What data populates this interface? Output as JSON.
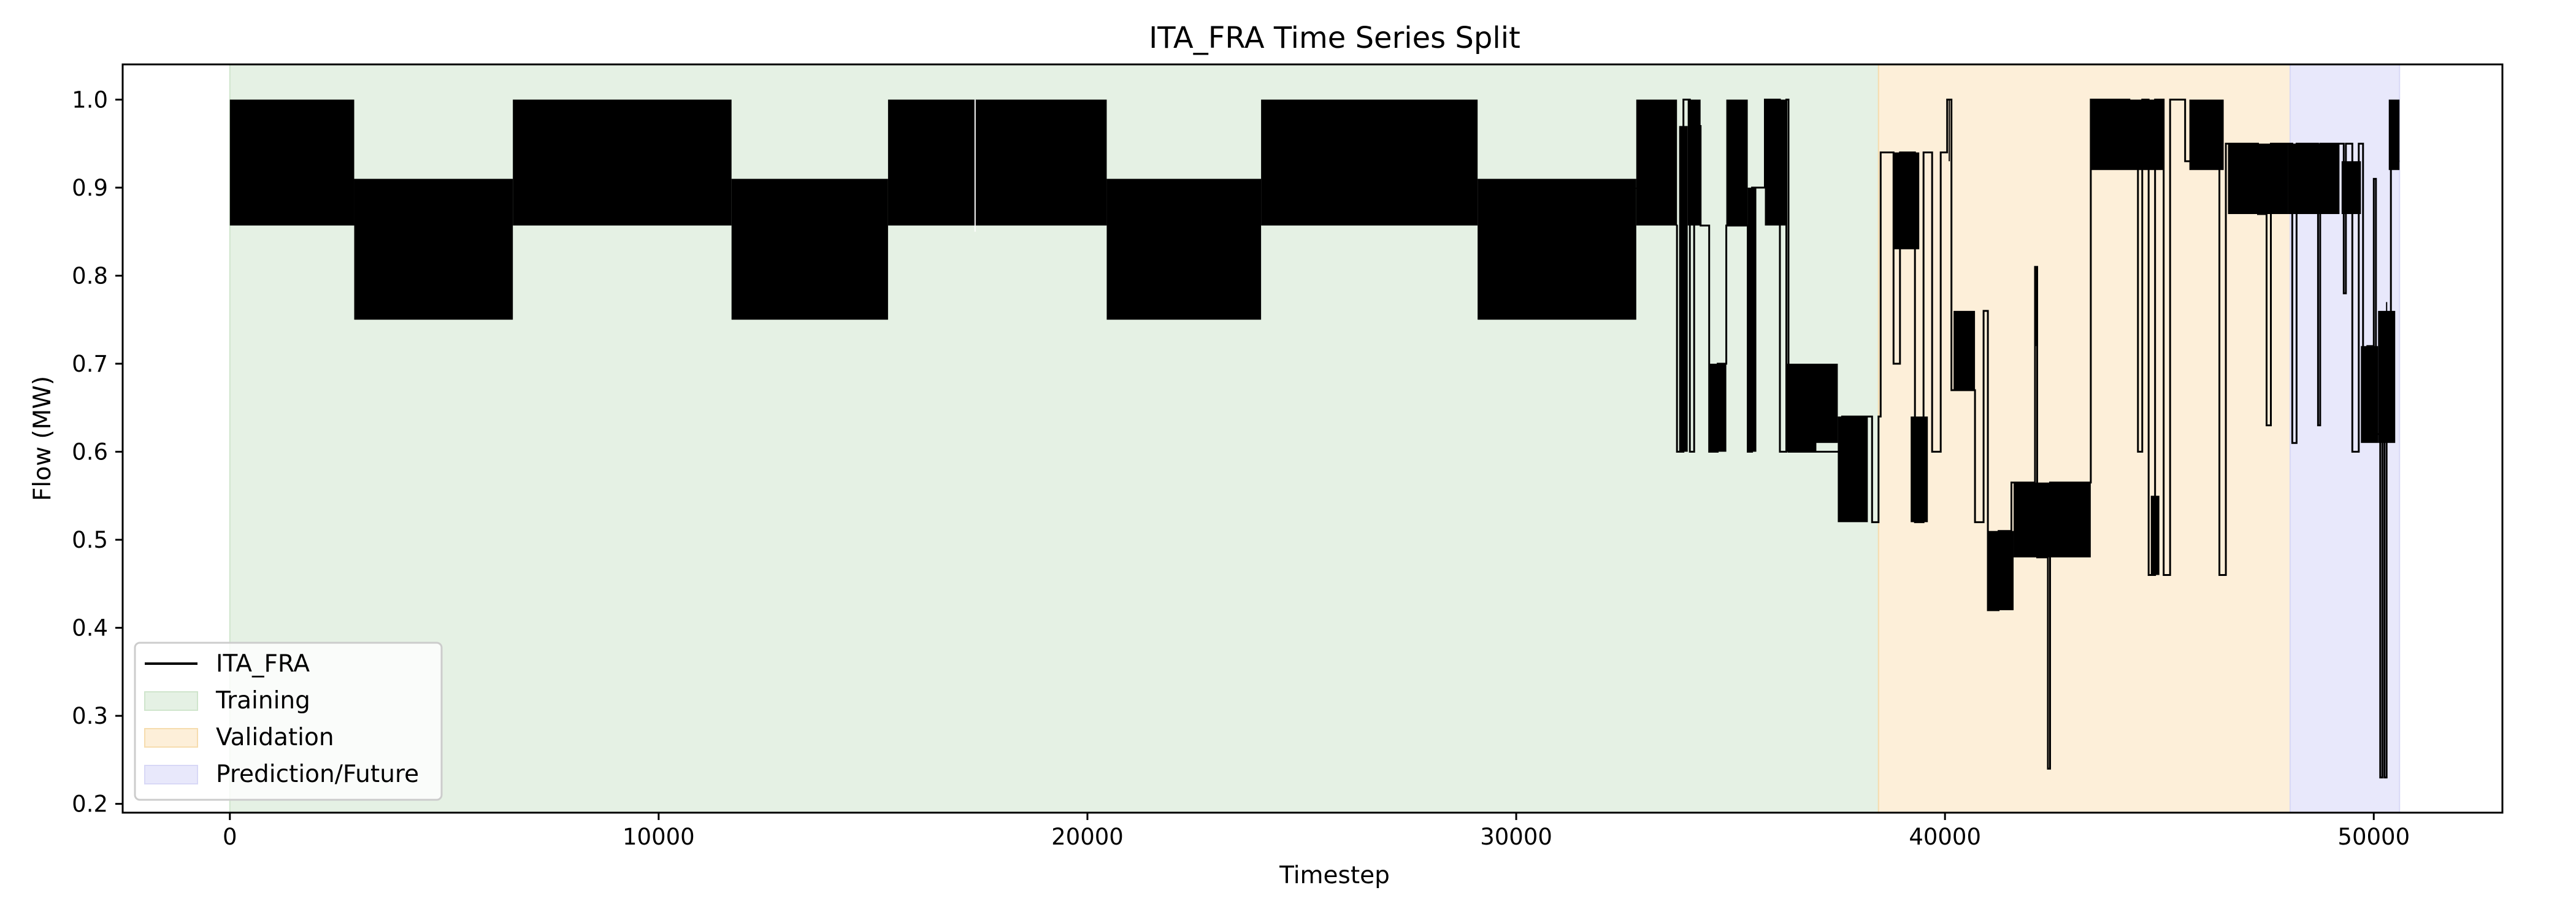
{
  "chart_data": {
    "type": "line",
    "title": "ITA_FRA Time Series Split",
    "xlabel": "Timestep",
    "ylabel": "Flow (MW)",
    "xlim": [
      -2500,
      53000
    ],
    "ylim": [
      0.19,
      1.04
    ],
    "xticks": [
      0,
      10000,
      20000,
      30000,
      40000,
      50000
    ],
    "xtick_labels": [
      "0",
      "10000",
      "20000",
      "30000",
      "40000",
      "50000"
    ],
    "yticks": [
      0.2,
      0.3,
      0.4,
      0.5,
      0.6,
      0.7,
      0.8,
      0.9,
      1.0
    ],
    "ytick_labels": [
      "0.2",
      "0.3",
      "0.4",
      "0.5",
      "0.6",
      "0.7",
      "0.8",
      "0.9",
      "1.0"
    ],
    "grid": false,
    "legend_position": "lower-left",
    "legend": [
      "ITA_FRA",
      "Training",
      "Validation",
      "Prediction/Future"
    ],
    "regions": [
      {
        "name": "Training",
        "x_start": 0,
        "x_end": 38450,
        "color": "#e5f1e4",
        "edge": "#cfe5cc"
      },
      {
        "name": "Validation",
        "x_start": 38450,
        "x_end": 48050,
        "color": "#fdefd9",
        "edge": "#f6dcae"
      },
      {
        "name": "Prediction/Future",
        "x_start": 48050,
        "x_end": 50600,
        "color": "#e8e8fb",
        "edge": "#d8d8f6"
      }
    ],
    "series": [
      {
        "name": "ITA_FRA",
        "color": "#000000",
        "bands": [
          [
            0,
            2900,
            0.857,
            1.0
          ],
          [
            2900,
            6600,
            0.75,
            0.91
          ],
          [
            6600,
            11700,
            0.857,
            1.0
          ],
          [
            11700,
            15350,
            0.75,
            0.91
          ],
          [
            15350,
            20450,
            0.857,
            1.0
          ],
          [
            20450,
            24050,
            0.75,
            0.91
          ],
          [
            24050,
            29100,
            0.857,
            1.0
          ],
          [
            29100,
            32800,
            0.75,
            0.91
          ],
          [
            32800,
            33750,
            0.857,
            1.0
          ],
          [
            33800,
            34000,
            0.6,
            0.97
          ],
          [
            34000,
            34300,
            0.857,
            1.0
          ],
          [
            34500,
            34900,
            0.6,
            0.7
          ],
          [
            34900,
            35400,
            0.857,
            1.0
          ],
          [
            35400,
            35600,
            0.6,
            0.9
          ],
          [
            35800,
            36300,
            0.857,
            1.0
          ],
          [
            36300,
            37000,
            0.6,
            0.7
          ],
          [
            36800,
            37500,
            0.61,
            0.7
          ],
          [
            37500,
            38200,
            0.52,
            0.64
          ],
          [
            38800,
            39400,
            0.83,
            0.94
          ],
          [
            39200,
            39600,
            0.52,
            0.64
          ],
          [
            40200,
            40700,
            0.67,
            0.76
          ],
          [
            41000,
            41600,
            0.42,
            0.51
          ],
          [
            41600,
            43400,
            0.48,
            0.565
          ],
          [
            43400,
            45100,
            0.92,
            1.0
          ],
          [
            44800,
            45000,
            0.46,
            0.55
          ],
          [
            45700,
            46500,
            0.92,
            1.0
          ],
          [
            46600,
            47300,
            0.87,
            0.95
          ],
          [
            47300,
            48000,
            0.87,
            0.95
          ],
          [
            48000,
            49200,
            0.87,
            0.95
          ],
          [
            49250,
            49700,
            0.87,
            0.93
          ],
          [
            49700,
            50100,
            0.61,
            0.72
          ],
          [
            50100,
            50500,
            0.61,
            0.76
          ],
          [
            50350,
            50600,
            0.92,
            1.0
          ]
        ],
        "points": [
          [
            32800,
            0.9
          ],
          [
            33750,
            0.857
          ],
          [
            33750,
            0.6
          ],
          [
            33900,
            0.6
          ],
          [
            33900,
            1.0
          ],
          [
            34050,
            1.0
          ],
          [
            34050,
            0.6
          ],
          [
            34150,
            0.6
          ],
          [
            34150,
            0.97
          ],
          [
            34300,
            0.97
          ],
          [
            34300,
            0.857
          ],
          [
            34500,
            0.857
          ],
          [
            34500,
            0.6
          ],
          [
            34700,
            0.6
          ],
          [
            34700,
            0.7
          ],
          [
            34900,
            0.7
          ],
          [
            34900,
            0.857
          ],
          [
            35400,
            0.857
          ],
          [
            35400,
            0.6
          ],
          [
            35500,
            0.6
          ],
          [
            35500,
            0.9
          ],
          [
            35800,
            0.9
          ],
          [
            35800,
            1.0
          ],
          [
            36150,
            1.0
          ],
          [
            36150,
            0.6
          ],
          [
            36300,
            0.6
          ],
          [
            36300,
            1.0
          ],
          [
            36350,
            1.0
          ],
          [
            36350,
            0.6
          ],
          [
            37600,
            0.6
          ],
          [
            37600,
            0.64
          ],
          [
            38300,
            0.64
          ],
          [
            38300,
            0.52
          ],
          [
            38450,
            0.52
          ],
          [
            38450,
            0.64
          ],
          [
            38500,
            0.64
          ],
          [
            38500,
            0.94
          ],
          [
            38800,
            0.94
          ],
          [
            38800,
            0.7
          ],
          [
            38950,
            0.7
          ],
          [
            38950,
            0.94
          ],
          [
            39300,
            0.94
          ],
          [
            39300,
            0.52
          ],
          [
            39500,
            0.52
          ],
          [
            39500,
            0.94
          ],
          [
            39700,
            0.94
          ],
          [
            39700,
            0.6
          ],
          [
            39900,
            0.6
          ],
          [
            39900,
            0.94
          ],
          [
            40050,
            0.94
          ],
          [
            40050,
            1.0
          ],
          [
            40150,
            1.0
          ],
          [
            40150,
            0.67
          ],
          [
            40700,
            0.67
          ],
          [
            40700,
            0.52
          ],
          [
            40900,
            0.52
          ],
          [
            40900,
            0.76
          ],
          [
            41000,
            0.76
          ],
          [
            41000,
            0.42
          ],
          [
            41250,
            0.42
          ],
          [
            41250,
            0.51
          ],
          [
            41550,
            0.51
          ],
          [
            41550,
            0.565
          ],
          [
            42100,
            0.565
          ],
          [
            42100,
            0.81
          ],
          [
            42150,
            0.81
          ],
          [
            42150,
            0.48
          ],
          [
            42400,
            0.48
          ],
          [
            42400,
            0.24
          ],
          [
            42450,
            0.24
          ],
          [
            42450,
            0.565
          ],
          [
            43400,
            0.565
          ],
          [
            43400,
            1.0
          ],
          [
            44300,
            1.0
          ],
          [
            44300,
            0.93
          ],
          [
            44500,
            0.93
          ],
          [
            44500,
            0.6
          ],
          [
            44600,
            0.6
          ],
          [
            44600,
            1.0
          ],
          [
            44750,
            1.0
          ],
          [
            44750,
            0.46
          ],
          [
            44900,
            0.46
          ],
          [
            44900,
            1.0
          ],
          [
            45100,
            1.0
          ],
          [
            45100,
            0.46
          ],
          [
            45250,
            0.46
          ],
          [
            45250,
            1.0
          ],
          [
            45600,
            1.0
          ],
          [
            45600,
            0.93
          ],
          [
            46400,
            0.93
          ],
          [
            46400,
            0.46
          ],
          [
            46550,
            0.46
          ],
          [
            46550,
            0.95
          ],
          [
            47300,
            0.95
          ],
          [
            47300,
            0.87
          ],
          [
            47500,
            0.87
          ],
          [
            47500,
            0.63
          ],
          [
            47600,
            0.63
          ],
          [
            47600,
            0.95
          ],
          [
            48100,
            0.95
          ],
          [
            48100,
            0.61
          ],
          [
            48200,
            0.61
          ],
          [
            48200,
            0.95
          ],
          [
            48700,
            0.95
          ],
          [
            48700,
            0.63
          ],
          [
            48750,
            0.63
          ],
          [
            48750,
            0.95
          ],
          [
            49300,
            0.95
          ],
          [
            49300,
            0.78
          ],
          [
            49350,
            0.78
          ],
          [
            49350,
            0.95
          ],
          [
            49500,
            0.95
          ],
          [
            49500,
            0.6
          ],
          [
            49650,
            0.6
          ],
          [
            49650,
            0.95
          ],
          [
            49750,
            0.95
          ],
          [
            49750,
            0.62
          ],
          [
            49850,
            0.62
          ],
          [
            49850,
            0.72
          ],
          [
            50000,
            0.72
          ],
          [
            50000,
            0.91
          ],
          [
            50050,
            0.91
          ],
          [
            50050,
            0.62
          ],
          [
            50150,
            0.62
          ],
          [
            50150,
            0.23
          ],
          [
            50200,
            0.23
          ],
          [
            50200,
            0.71
          ],
          [
            50250,
            0.71
          ],
          [
            50250,
            0.23
          ],
          [
            50300,
            0.23
          ],
          [
            50300,
            0.7
          ],
          [
            50400,
            0.7
          ],
          [
            50400,
            0.93
          ],
          [
            50600,
            0.93
          ]
        ],
        "spikes": [
          [
            17380,
            0.85,
            1.0
          ],
          [
            40100,
            0.93,
            1.0
          ],
          [
            42120,
            0.72,
            0.81
          ],
          [
            50300,
            0.62,
            0.77
          ]
        ]
      }
    ]
  }
}
